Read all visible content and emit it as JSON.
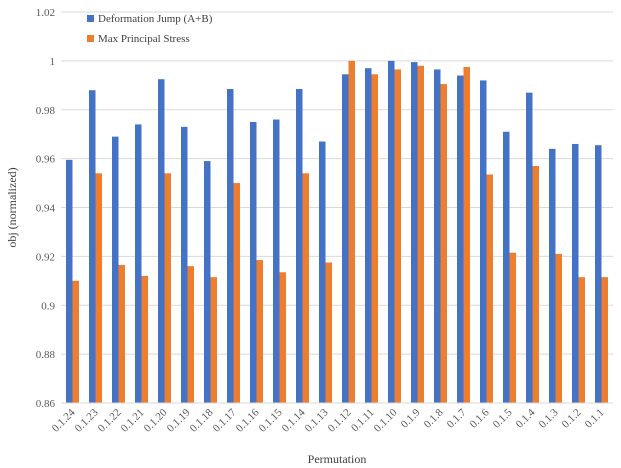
{
  "chart_data": {
    "type": "bar",
    "xlabel": "Permutation",
    "ylabel": "obj (normalized)",
    "ylim": [
      0.86,
      1.02
    ],
    "yticks": [
      "0.86",
      "0.88",
      "0.9",
      "0.92",
      "0.94",
      "0.96",
      "0.98",
      "1",
      "1.02"
    ],
    "categories": [
      "0.1.24",
      "0.1.23",
      "0.1.22",
      "0.1.21",
      "0.1.20",
      "0.1.19",
      "0.1.18",
      "0.1.17",
      "0.1.16",
      "0.1.15",
      "0.1.14",
      "0.1.13",
      "0.1.12",
      "0.1.11",
      "0.1.10",
      "0.1.9",
      "0.1.8",
      "0.1.7",
      "0.1.6",
      "0.1.5",
      "0.1.4",
      "0.1.3",
      "0.1.2",
      "0.1.1"
    ],
    "series": [
      {
        "name": "Deformation Jump (A+B)",
        "color": "#4472C4",
        "values": [
          0.9595,
          0.988,
          0.969,
          0.974,
          0.9925,
          0.973,
          0.959,
          0.9885,
          0.975,
          0.976,
          0.9885,
          0.967,
          0.9945,
          0.997,
          1.0,
          0.9995,
          0.9965,
          0.994,
          0.992,
          0.971,
          0.987,
          0.964,
          0.966,
          0.9655
        ]
      },
      {
        "name": "Max Principal Stress",
        "color": "#ED7D31",
        "values": [
          0.91,
          0.954,
          0.9165,
          0.912,
          0.954,
          0.916,
          0.9115,
          0.95,
          0.9185,
          0.9135,
          0.954,
          0.9175,
          1.0,
          0.9945,
          0.9965,
          0.998,
          0.9905,
          0.9975,
          0.9535,
          0.9215,
          0.957,
          0.921,
          0.9115,
          0.9115
        ]
      }
    ],
    "grid": true,
    "legend_position": "top-left"
  }
}
